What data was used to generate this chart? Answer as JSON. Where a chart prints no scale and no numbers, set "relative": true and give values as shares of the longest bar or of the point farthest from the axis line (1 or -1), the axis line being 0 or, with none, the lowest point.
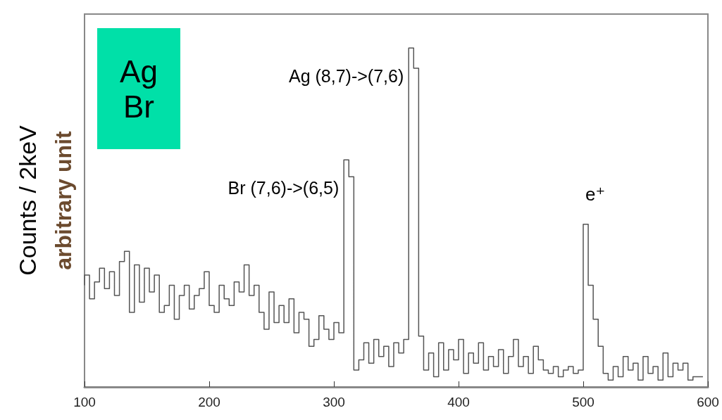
{
  "chart_data": {
    "type": "step",
    "relative": true,
    "ylabel": "Counts / 2keV",
    "y2label": "arbitrary unit",
    "xlim": [
      100,
      600
    ],
    "xticks": [
      100,
      200,
      300,
      400,
      500,
      600
    ],
    "x": [
      100,
      104,
      108,
      112,
      116,
      120,
      124,
      128,
      132,
      136,
      140,
      144,
      148,
      152,
      156,
      160,
      164,
      168,
      172,
      176,
      180,
      184,
      188,
      192,
      196,
      200,
      204,
      208,
      212,
      216,
      220,
      224,
      228,
      232,
      236,
      240,
      244,
      248,
      252,
      256,
      260,
      264,
      268,
      272,
      276,
      280,
      284,
      288,
      292,
      296,
      300,
      304,
      308,
      312,
      316,
      320,
      324,
      328,
      332,
      336,
      340,
      344,
      348,
      352,
      356,
      360,
      364,
      368,
      372,
      376,
      380,
      384,
      388,
      392,
      396,
      400,
      404,
      408,
      412,
      416,
      420,
      424,
      428,
      432,
      436,
      440,
      444,
      448,
      452,
      456,
      460,
      464,
      468,
      472,
      476,
      480,
      484,
      488,
      492,
      496,
      500,
      504,
      508,
      512,
      516,
      520,
      524,
      528,
      532,
      536,
      540,
      544,
      548,
      552,
      556,
      560,
      564,
      568,
      572,
      576,
      580,
      584,
      588,
      592,
      596
    ],
    "series": [
      {
        "color": "#555555",
        "values": [
          0.3,
          0.33,
          0.26,
          0.31,
          0.35,
          0.29,
          0.34,
          0.27,
          0.37,
          0.4,
          0.22,
          0.36,
          0.25,
          0.35,
          0.28,
          0.33,
          0.22,
          0.24,
          0.3,
          0.2,
          0.27,
          0.3,
          0.23,
          0.27,
          0.29,
          0.34,
          0.24,
          0.22,
          0.3,
          0.26,
          0.24,
          0.31,
          0.28,
          0.36,
          0.27,
          0.3,
          0.22,
          0.17,
          0.28,
          0.19,
          0.24,
          0.19,
          0.26,
          0.16,
          0.22,
          0.2,
          0.12,
          0.14,
          0.21,
          0.17,
          0.14,
          0.19,
          0.16,
          0.67,
          0.62,
          0.05,
          0.08,
          0.13,
          0.07,
          0.14,
          0.09,
          0.12,
          0.06,
          0.13,
          0.1,
          0.14,
          1.0,
          0.94,
          0.15,
          0.05,
          0.1,
          0.03,
          0.13,
          0.05,
          0.11,
          0.08,
          0.14,
          0.04,
          0.1,
          0.07,
          0.13,
          0.05,
          0.09,
          0.06,
          0.11,
          0.04,
          0.09,
          0.14,
          0.06,
          0.09,
          0.04,
          0.12,
          0.08,
          0.05,
          0.04,
          0.06,
          0.03,
          0.05,
          0.06,
          0.04,
          0.05,
          0.48,
          0.3,
          0.2,
          0.12,
          0.04,
          0.02,
          0.06,
          0.03,
          0.09,
          0.05,
          0.07,
          0.02,
          0.09,
          0.04,
          0.06,
          0.02,
          0.1,
          0.03,
          0.07,
          0.05,
          0.07,
          0.02,
          0.03,
          0.03
        ]
      }
    ],
    "annotations": [
      "Ag\nBr",
      {
        "text": "Ag (8,7)->(7,6)",
        "x": 364,
        "y": 1.0
      },
      {
        "text": "Br (7,6)->(6,5)",
        "x": 312,
        "y": 0.67
      },
      {
        "text": "e⁺",
        "x": 504,
        "y": 0.48
      }
    ]
  }
}
